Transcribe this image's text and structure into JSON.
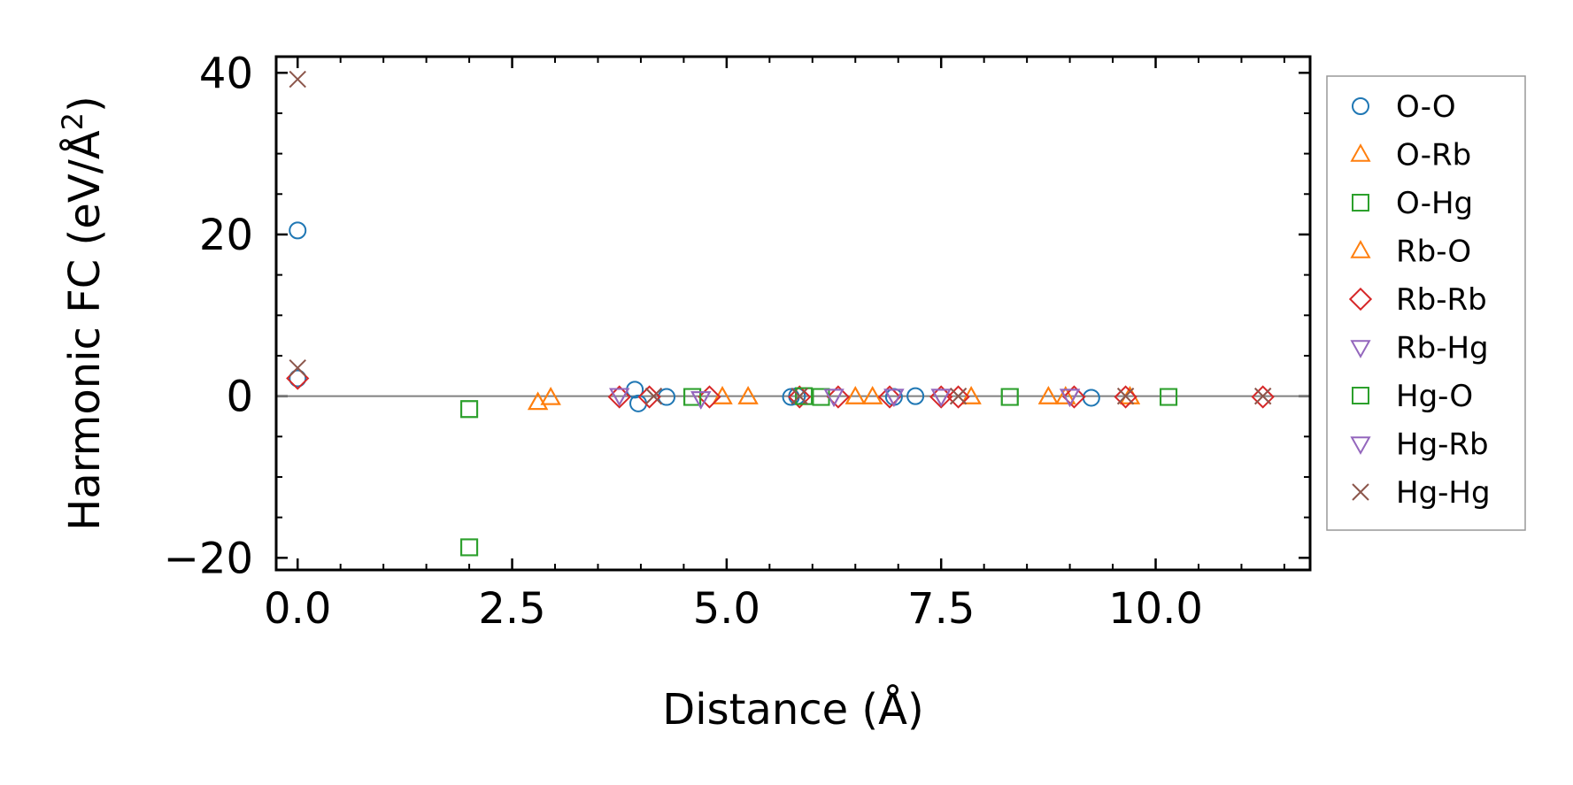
{
  "chart_data": {
    "type": "scatter",
    "xlabel": "Distance (Å)",
    "ylabel_prefix": "Harmonic FC (eV/Å",
    "ylabel_sup": "2",
    "ylabel_suffix": ")",
    "xlim": [
      -0.25,
      11.8
    ],
    "ylim": [
      -21.5,
      42
    ],
    "x_ticks": [
      0.0,
      2.5,
      5.0,
      7.5,
      10.0
    ],
    "x_tick_labels": [
      "0.0",
      "2.5",
      "5.0",
      "7.5",
      "10.0"
    ],
    "y_ticks": [
      -20,
      0,
      20,
      40
    ],
    "y_tick_labels": [
      "−20",
      "0",
      "20",
      "40"
    ],
    "grid": false,
    "zero_line": true,
    "legend_position": "outside-right",
    "series": [
      {
        "name": "O-O",
        "marker": "circle",
        "color": "#1f77b4",
        "x": [
          0.0,
          0.0,
          3.93,
          3.97,
          4.3,
          5.75,
          5.82,
          6.95,
          7.2,
          9.25
        ],
        "y": [
          20.5,
          2.2,
          0.8,
          -0.9,
          -0.1,
          -0.1,
          0.0,
          -0.1,
          0.0,
          -0.2
        ]
      },
      {
        "name": "O-Rb",
        "marker": "triangle-up",
        "color": "#ff7f0e",
        "x": [
          2.8,
          2.95,
          4.95,
          5.25,
          6.5,
          6.7,
          7.85,
          8.75,
          8.95,
          9.7
        ],
        "y": [
          -0.8,
          -0.2,
          -0.1,
          -0.1,
          -0.1,
          -0.1,
          -0.1,
          -0.1,
          -0.1,
          -0.1
        ]
      },
      {
        "name": "O-Hg",
        "marker": "square",
        "color": "#2ca02c",
        "x": [
          2.0,
          2.0,
          4.6,
          5.9,
          6.1,
          8.3,
          10.15
        ],
        "y": [
          -1.6,
          -18.7,
          -0.1,
          0.0,
          -0.1,
          -0.1,
          -0.1
        ]
      },
      {
        "name": "Rb-O",
        "marker": "triangle-up",
        "color": "#ff7f0e",
        "x": [
          2.8,
          2.95,
          4.95,
          5.25,
          6.5,
          6.7,
          7.85,
          8.75,
          8.95,
          9.7
        ],
        "y": [
          -0.8,
          -0.2,
          -0.1,
          -0.1,
          -0.1,
          -0.1,
          -0.1,
          -0.1,
          -0.1,
          -0.1
        ]
      },
      {
        "name": "Rb-Rb",
        "marker": "diamond",
        "color": "#d62728",
        "x": [
          0.0,
          3.75,
          4.1,
          4.8,
          5.85,
          6.3,
          6.9,
          7.5,
          7.7,
          9.05,
          9.65,
          11.25
        ],
        "y": [
          2.2,
          -0.1,
          -0.1,
          -0.1,
          -0.1,
          -0.1,
          -0.1,
          -0.1,
          -0.1,
          -0.1,
          -0.1,
          -0.1
        ]
      },
      {
        "name": "Rb-Hg",
        "marker": "triangle-down",
        "color": "#9467bd",
        "x": [
          3.75,
          4.7,
          6.25,
          6.95,
          7.5,
          9.0
        ],
        "y": [
          0.1,
          -0.3,
          0.0,
          0.0,
          0.0,
          0.0
        ]
      },
      {
        "name": "Hg-O",
        "marker": "square",
        "color": "#2ca02c",
        "x": [
          2.0,
          2.0,
          4.6,
          5.9,
          6.1,
          8.3,
          10.15
        ],
        "y": [
          -1.6,
          -18.7,
          -0.1,
          0.0,
          -0.1,
          -0.1,
          -0.1
        ]
      },
      {
        "name": "Hg-Rb",
        "marker": "triangle-down",
        "color": "#9467bd",
        "x": [
          3.75,
          4.7,
          6.25,
          6.95,
          7.5,
          9.0
        ],
        "y": [
          0.1,
          -0.3,
          0.0,
          0.0,
          0.0,
          0.0
        ]
      },
      {
        "name": "Hg-Hg",
        "marker": "x",
        "color": "#8c564b",
        "x": [
          0.0,
          0.0,
          4.15,
          5.85,
          7.7,
          9.65,
          11.25
        ],
        "y": [
          39.2,
          3.5,
          0.0,
          0.0,
          0.0,
          0.0,
          0.0
        ]
      }
    ]
  }
}
